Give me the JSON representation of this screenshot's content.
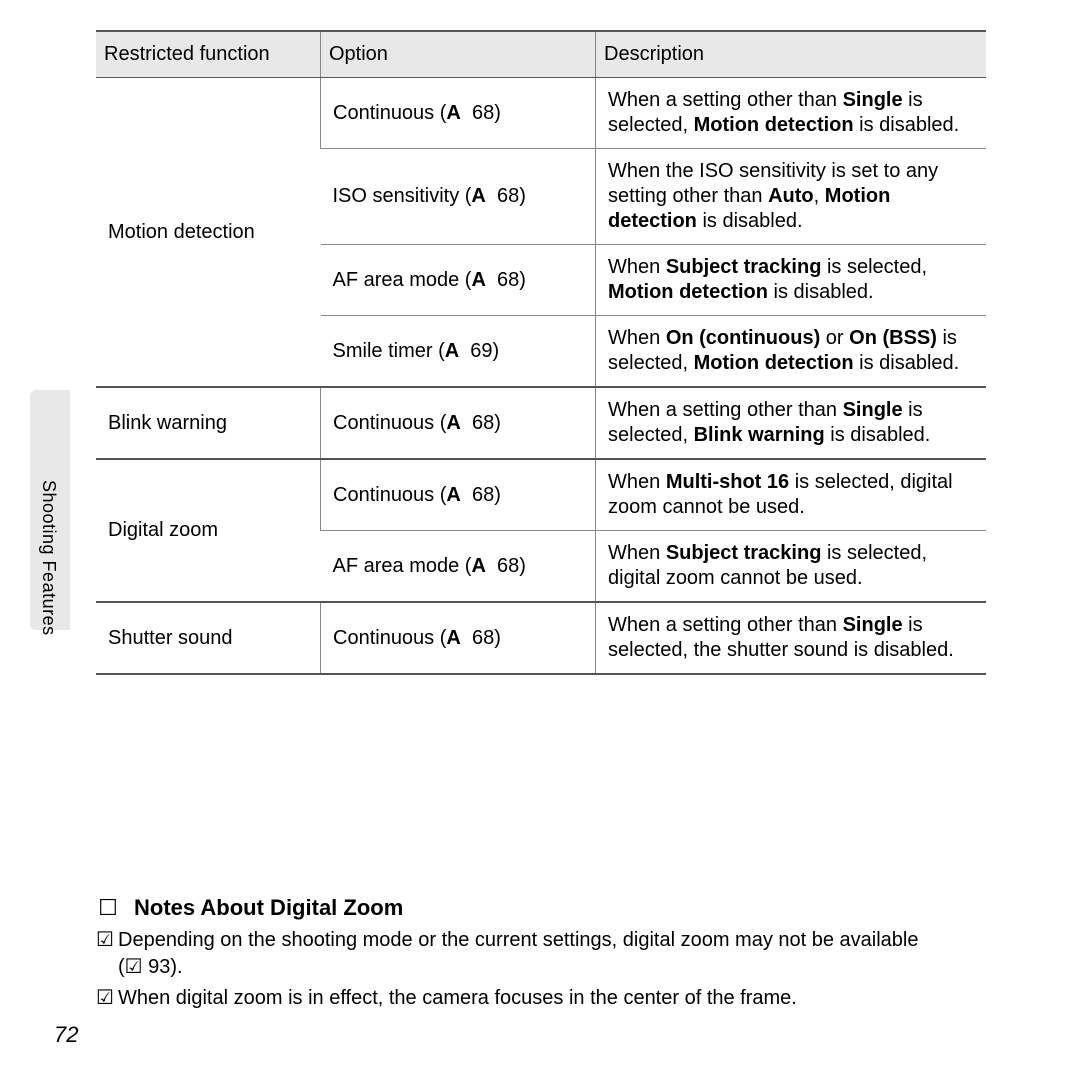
{
  "side_label": "Shooting Features",
  "page_number": "72",
  "table": {
    "headers": [
      "Restricted function",
      "Option",
      "Description"
    ],
    "groups": [
      {
        "func": "Motion detection",
        "rows": [
          {
            "option": "Continuous (",
            "ref": "A",
            "page": "68)",
            "desc_html": "When a setting other than <b>Single</b> is selected, <b>Motion detection</b> is disabled."
          },
          {
            "option": "ISO sensitivity (",
            "ref": "A",
            "page": "68)",
            "desc_html": "When the ISO sensitivity is set to any setting other than <b>Auto</b>, <b>Motion detection</b> is disabled."
          },
          {
            "option": "AF area mode (",
            "ref": "A",
            "page": "68)",
            "desc_html": "When <b>Subject tracking</b> is selected, <b>Motion detection</b> is disabled."
          },
          {
            "option": "Smile timer (",
            "ref": "A",
            "page": "69)",
            "desc_html": "When <b>On (continuous)</b> or <b>On (BSS)</b> is selected, <b>Motion detection</b> is disabled."
          }
        ]
      },
      {
        "func": "Blink warning",
        "rows": [
          {
            "option": "Continuous (",
            "ref": "A",
            "page": "68)",
            "desc_html": "When a setting other than <b>Single</b> is selected, <b>Blink warning</b> is disabled."
          }
        ]
      },
      {
        "func": "Digital zoom",
        "rows": [
          {
            "option": "Continuous (",
            "ref": "A",
            "page": "68)",
            "desc_html": "When <b>Multi-shot 16</b> is selected, digital zoom cannot be used."
          },
          {
            "option": "AF area mode (",
            "ref": "A",
            "page": "68)",
            "desc_html": "When <b>Subject tracking</b> is selected, digital zoom cannot be used."
          }
        ]
      },
      {
        "func": "Shutter sound",
        "rows": [
          {
            "option": "Continuous (",
            "ref": "A",
            "page": "68)",
            "desc_html": "When a setting other than <b>Single</b> is selected, the shutter sound is disabled."
          }
        ]
      }
    ]
  },
  "notes": {
    "title": "Notes About Digital Zoom",
    "items": [
      "Depending on the shooting mode or the current settings, digital zoom may not be available (☑ 93).",
      "When digital zoom is in effect, the camera focuses in the center of the frame."
    ]
  }
}
